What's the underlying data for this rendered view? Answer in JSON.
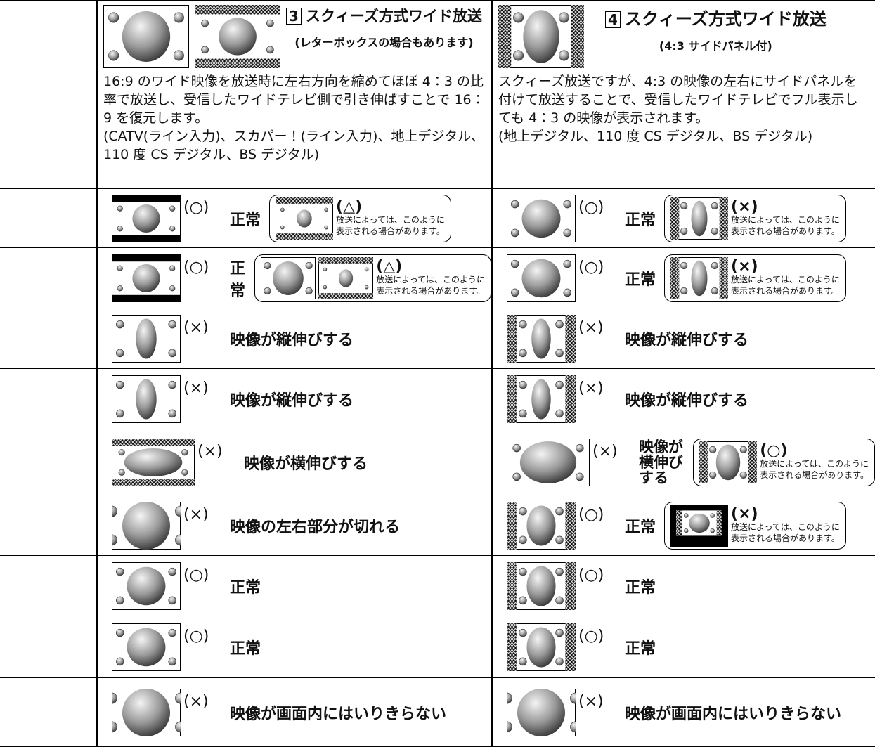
{
  "header": {
    "columns": [
      {
        "number": "3",
        "title": "スクィーズ方式ワイド放送",
        "subtitle": "(レターボックスの場合もあります)",
        "description": [
          "16:9 のワイド映像を放送時に左右方向を縮めてほぼ 4：3 の比率で放送し、受信したワイドテレビ側で引き伸ばすことで 16：9 を復元します。",
          "(CATV(ライン入力)、スカパー！(ライン入力)、地上デジタル、110 度 CS デジタル、BS デジタル)"
        ]
      },
      {
        "number": "4",
        "title": "スクィーズ方式ワイド放送",
        "subtitle": "(4:3 サイドパネル付)",
        "description": [
          "スクィーズ放送ですが、4:3 の映像の左右にサイドパネルを付けて放送することで、受信したワイドテレビでフル表示しても 4：3 の映像が表示されます。",
          "(地上デジタル、110 度 CS デジタル、BS デジタル)"
        ]
      }
    ]
  },
  "rows": [
    {
      "cells": [
        {
          "mark": "(○)",
          "status": "正常",
          "alt": {
            "mark": "(△)",
            "note": [
              "放送によっては、このように",
              "表示される場合があります。"
            ]
          }
        },
        {
          "mark": "(○)",
          "status": "正常",
          "alt": {
            "mark": "(×)",
            "note": [
              "放送によっては、このように",
              "表示される場合があります。"
            ]
          }
        }
      ]
    },
    {
      "cells": [
        {
          "mark": "(○)",
          "status": "正常",
          "alt": {
            "mark": "(△)",
            "note": [
              "放送によっては、このように",
              "表示される場合があります。"
            ]
          }
        },
        {
          "mark": "(○)",
          "status": "正常",
          "alt": {
            "mark": "(×)",
            "note": [
              "放送によっては、このように",
              "表示される場合があります。"
            ]
          }
        }
      ]
    },
    {
      "cells": [
        {
          "mark": "(×)",
          "status": "映像が縦伸びする"
        },
        {
          "mark": "(×)",
          "status": "映像が縦伸びする"
        }
      ]
    },
    {
      "cells": [
        {
          "mark": "(×)",
          "status": "映像が縦伸びする"
        },
        {
          "mark": "(×)",
          "status": "映像が縦伸びする"
        }
      ]
    },
    {
      "cells": [
        {
          "mark": "(×)",
          "status": "映像が横伸びする"
        },
        {
          "mark": "(×)",
          "status": "映像が横伸びする",
          "alt": {
            "mark": "(○)",
            "note": [
              "放送によっては、このように",
              "表示される場合があります。"
            ]
          }
        }
      ]
    },
    {
      "cells": [
        {
          "mark": "(×)",
          "status": "映像の左右部分が切れる"
        },
        {
          "mark": "(○)",
          "status": "正常",
          "alt": {
            "mark": "(×)",
            "note": [
              "放送によっては、このように",
              "表示される場合があります。"
            ]
          }
        }
      ]
    },
    {
      "cells": [
        {
          "mark": "(○)",
          "status": "正常"
        },
        {
          "mark": "(○)",
          "status": "正常"
        }
      ]
    },
    {
      "cells": [
        {
          "mark": "(○)",
          "status": "正常"
        },
        {
          "mark": "(○)",
          "status": "正常"
        }
      ]
    },
    {
      "cells": [
        {
          "mark": "(×)",
          "status": "映像が画面内にはいりきらない"
        },
        {
          "mark": "(×)",
          "status": "映像が画面内にはいりきらない"
        }
      ]
    }
  ]
}
